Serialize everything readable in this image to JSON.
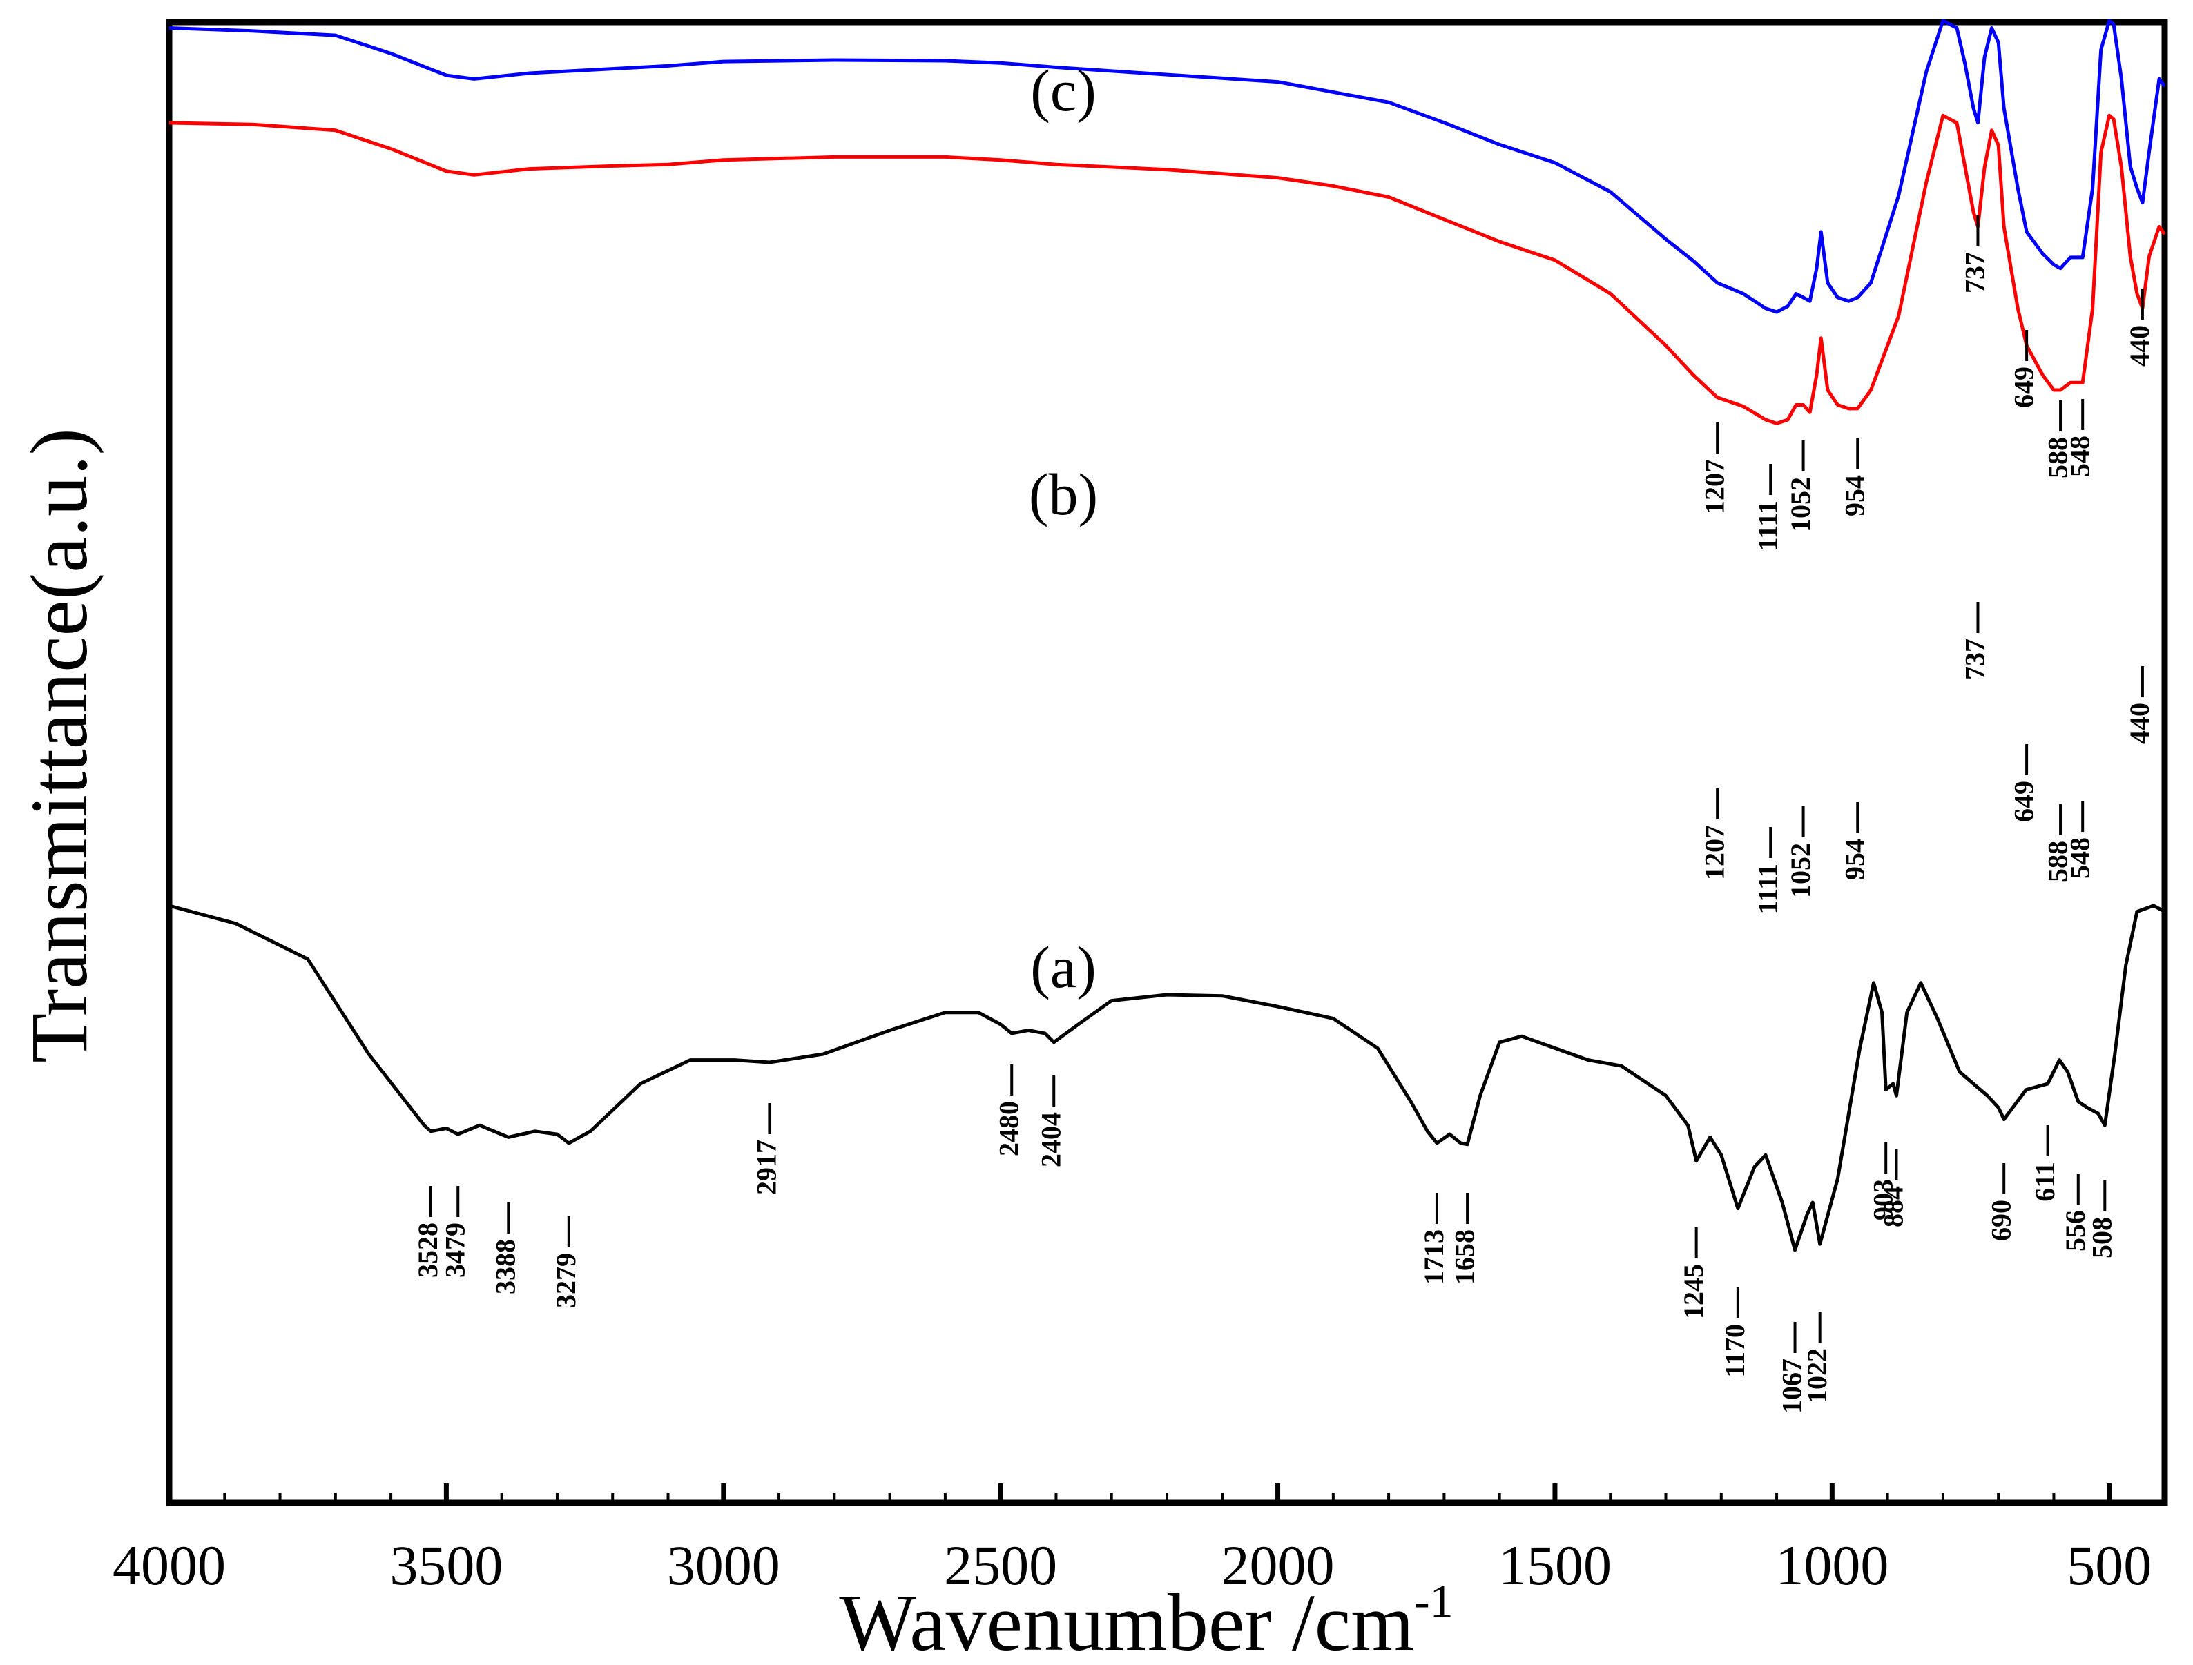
{
  "chart_data": {
    "type": "line",
    "title": "",
    "xlabel": "Wavenumber /cm",
    "xlabel_superscript": "-1",
    "ylabel": "Transmittance(a.u.)",
    "xlim": [
      4000,
      400
    ],
    "ylim": [
      0,
      100
    ],
    "x_ticks": [
      4000,
      3500,
      3000,
      2500,
      2000,
      1500,
      1000,
      500
    ],
    "grid": false,
    "series": [
      {
        "name": "(a)",
        "color": "#000000",
        "points": [
          [
            4000,
            80
          ],
          [
            3880,
            77
          ],
          [
            3750,
            71
          ],
          [
            3640,
            55
          ],
          [
            3540,
            43
          ],
          [
            3528,
            42
          ],
          [
            3500,
            42.5
          ],
          [
            3479,
            41.5
          ],
          [
            3440,
            43
          ],
          [
            3388,
            41
          ],
          [
            3340,
            42
          ],
          [
            3300,
            41.5
          ],
          [
            3279,
            40
          ],
          [
            3240,
            42
          ],
          [
            3150,
            50
          ],
          [
            3060,
            54
          ],
          [
            2980,
            54
          ],
          [
            2917,
            53.6
          ],
          [
            2820,
            55
          ],
          [
            2700,
            59
          ],
          [
            2600,
            62
          ],
          [
            2540,
            62
          ],
          [
            2500,
            60
          ],
          [
            2480,
            58.5
          ],
          [
            2450,
            59
          ],
          [
            2420,
            58.5
          ],
          [
            2404,
            57
          ],
          [
            2360,
            60
          ],
          [
            2300,
            64
          ],
          [
            2200,
            65
          ],
          [
            2100,
            64.8
          ],
          [
            2000,
            63
          ],
          [
            1900,
            61
          ],
          [
            1820,
            56
          ],
          [
            1760,
            47
          ],
          [
            1730,
            42
          ],
          [
            1713,
            40
          ],
          [
            1690,
            41.5
          ],
          [
            1670,
            40
          ],
          [
            1658,
            39.8
          ],
          [
            1635,
            48
          ],
          [
            1600,
            57
          ],
          [
            1560,
            58
          ],
          [
            1500,
            56
          ],
          [
            1440,
            54
          ],
          [
            1380,
            53
          ],
          [
            1300,
            48
          ],
          [
            1260,
            43
          ],
          [
            1245,
            37
          ],
          [
            1220,
            41
          ],
          [
            1200,
            38
          ],
          [
            1170,
            29
          ],
          [
            1140,
            36
          ],
          [
            1120,
            38
          ],
          [
            1090,
            30
          ],
          [
            1067,
            22
          ],
          [
            1045,
            28
          ],
          [
            1035,
            30
          ],
          [
            1022,
            23
          ],
          [
            990,
            34
          ],
          [
            950,
            56
          ],
          [
            925,
            67
          ],
          [
            910,
            62
          ],
          [
            903,
            49
          ],
          [
            890,
            50
          ],
          [
            884,
            48
          ],
          [
            865,
            62
          ],
          [
            840,
            67
          ],
          [
            810,
            61
          ],
          [
            770,
            52
          ],
          [
            720,
            48
          ],
          [
            700,
            46
          ],
          [
            690,
            44
          ],
          [
            650,
            49
          ],
          [
            611,
            50
          ],
          [
            590,
            54
          ],
          [
            575,
            52
          ],
          [
            556,
            47
          ],
          [
            540,
            46
          ],
          [
            520,
            45
          ],
          [
            508,
            43
          ],
          [
            490,
            55
          ],
          [
            470,
            70
          ],
          [
            450,
            79
          ],
          [
            420,
            80
          ],
          [
            400,
            79
          ]
        ],
        "peaks": [
          "3528",
          "3479",
          "3388",
          "3279",
          "2917",
          "2480",
          "2404",
          "1713",
          "1658",
          "1245",
          "1170",
          "1067",
          "1022",
          "903",
          "884",
          "690",
          "611",
          "556",
          "508"
        ]
      },
      {
        "name": "(b)",
        "color": "#ff0000",
        "points": [
          [
            4000,
            96
          ],
          [
            3850,
            95.8
          ],
          [
            3700,
            95
          ],
          [
            3600,
            92.5
          ],
          [
            3500,
            89.5
          ],
          [
            3450,
            89
          ],
          [
            3350,
            89.8
          ],
          [
            3200,
            90.2
          ],
          [
            3100,
            90.4
          ],
          [
            3000,
            91
          ],
          [
            2800,
            91.4
          ],
          [
            2600,
            91.4
          ],
          [
            2500,
            91
          ],
          [
            2400,
            90.4
          ],
          [
            2200,
            89.7
          ],
          [
            2000,
            88.6
          ],
          [
            1900,
            87.5
          ],
          [
            1800,
            86
          ],
          [
            1700,
            83
          ],
          [
            1600,
            80
          ],
          [
            1500,
            77.5
          ],
          [
            1400,
            73
          ],
          [
            1300,
            66
          ],
          [
            1250,
            62
          ],
          [
            1207,
            59
          ],
          [
            1160,
            57.8
          ],
          [
            1120,
            56
          ],
          [
            1100,
            55.5
          ],
          [
            1080,
            56
          ],
          [
            1065,
            58
          ],
          [
            1052,
            58
          ],
          [
            1040,
            57
          ],
          [
            1028,
            62
          ],
          [
            1020,
            67
          ],
          [
            1008,
            60
          ],
          [
            990,
            58
          ],
          [
            970,
            57.5
          ],
          [
            954,
            57.5
          ],
          [
            930,
            60
          ],
          [
            880,
            70
          ],
          [
            830,
            88
          ],
          [
            800,
            97
          ],
          [
            775,
            96
          ],
          [
            760,
            90
          ],
          [
            745,
            84
          ],
          [
            737,
            82
          ],
          [
            725,
            90
          ],
          [
            712,
            95
          ],
          [
            700,
            93
          ],
          [
            690,
            82
          ],
          [
            665,
            71
          ],
          [
            649,
            66
          ],
          [
            620,
            62
          ],
          [
            600,
            60
          ],
          [
            588,
            60
          ],
          [
            570,
            61
          ],
          [
            548,
            61
          ],
          [
            530,
            71
          ],
          [
            515,
            92
          ],
          [
            500,
            97
          ],
          [
            492,
            96.5
          ],
          [
            478,
            90
          ],
          [
            462,
            78
          ],
          [
            450,
            73
          ],
          [
            440,
            71
          ],
          [
            428,
            78
          ],
          [
            410,
            82
          ],
          [
            400,
            81
          ]
        ],
        "peaks": [
          "1207",
          "1111",
          "1052",
          "954",
          "737",
          "649",
          "588",
          "548",
          "440"
        ]
      },
      {
        "name": "(c)",
        "color": "#0000ff",
        "points": [
          [
            4000,
            99
          ],
          [
            3850,
            98.6
          ],
          [
            3700,
            98
          ],
          [
            3600,
            95.5
          ],
          [
            3500,
            92.5
          ],
          [
            3450,
            92
          ],
          [
            3350,
            92.8
          ],
          [
            3200,
            93.4
          ],
          [
            3100,
            93.8
          ],
          [
            3000,
            94.4
          ],
          [
            2800,
            94.6
          ],
          [
            2600,
            94.5
          ],
          [
            2500,
            94.2
          ],
          [
            2400,
            93.6
          ],
          [
            2200,
            92.6
          ],
          [
            2000,
            91.6
          ],
          [
            1900,
            90.2
          ],
          [
            1800,
            88.8
          ],
          [
            1700,
            86
          ],
          [
            1600,
            83
          ],
          [
            1500,
            80.5
          ],
          [
            1400,
            76.5
          ],
          [
            1300,
            70
          ],
          [
            1250,
            67
          ],
          [
            1207,
            64
          ],
          [
            1160,
            62.5
          ],
          [
            1120,
            60.5
          ],
          [
            1100,
            60
          ],
          [
            1080,
            60.8
          ],
          [
            1065,
            62.5
          ],
          [
            1052,
            62
          ],
          [
            1040,
            61.5
          ],
          [
            1028,
            66
          ],
          [
            1020,
            71
          ],
          [
            1008,
            64
          ],
          [
            990,
            62
          ],
          [
            970,
            61.5
          ],
          [
            954,
            62
          ],
          [
            930,
            64
          ],
          [
            880,
            76
          ],
          [
            830,
            93
          ],
          [
            800,
            100
          ],
          [
            775,
            99
          ],
          [
            760,
            94
          ],
          [
            745,
            88
          ],
          [
            737,
            86
          ],
          [
            725,
            95
          ],
          [
            712,
            99
          ],
          [
            700,
            97
          ],
          [
            690,
            88
          ],
          [
            665,
            77
          ],
          [
            649,
            71
          ],
          [
            620,
            68
          ],
          [
            600,
            66.5
          ],
          [
            588,
            66
          ],
          [
            570,
            67.5
          ],
          [
            548,
            67.5
          ],
          [
            530,
            77
          ],
          [
            515,
            96
          ],
          [
            500,
            100
          ],
          [
            492,
            99.5
          ],
          [
            478,
            92
          ],
          [
            462,
            80
          ],
          [
            450,
            77
          ],
          [
            440,
            75
          ],
          [
            428,
            82
          ],
          [
            410,
            92
          ],
          [
            400,
            91
          ]
        ],
        "peaks": [
          "1207",
          "1111",
          "1052",
          "954",
          "737",
          "649",
          "588",
          "548",
          "440"
        ]
      }
    ]
  }
}
